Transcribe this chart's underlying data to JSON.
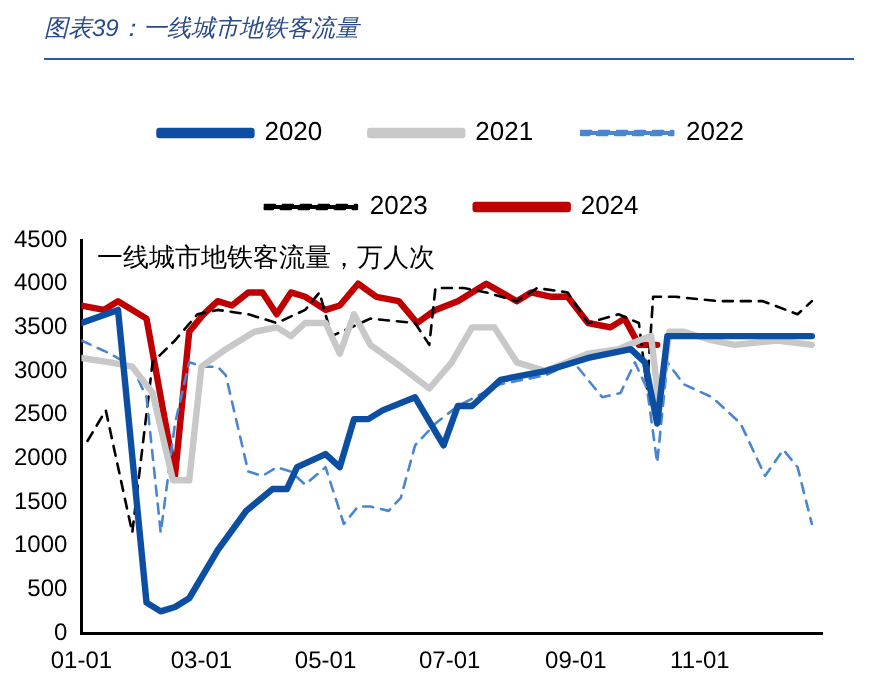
{
  "chart_data": {
    "type": "line",
    "title": "图表39：一线城市地铁客流量",
    "ylabel": "一线城市地铁客流量，万人次",
    "legend": "top",
    "grid": false,
    "marker": "none",
    "xlim": [
      "--01-01",
      "--12-31"
    ],
    "xticks": [
      {
        "value": "--01-01",
        "label": "01-01"
      },
      {
        "value": "--03-01",
        "label": "03-01"
      },
      {
        "value": "--05-01",
        "label": "05-01"
      },
      {
        "value": "--07-01",
        "label": "07-01"
      },
      {
        "value": "--09-01",
        "label": "09-01"
      },
      {
        "value": "--11-01",
        "label": "11-01"
      }
    ],
    "ylim": [
      0,
      4500
    ],
    "yticks": [
      0,
      500,
      1000,
      1500,
      2000,
      2500,
      3000,
      3500,
      4000,
      4500
    ],
    "series": [
      {
        "name": "2020",
        "color": "#0b4ea2",
        "line_style": "solid",
        "x": [
          "--01-01",
          "--01-19",
          "--02-02",
          "--02-09",
          "--02-16",
          "--02-23",
          "--03-09",
          "--03-23",
          "--04-05",
          "--04-12",
          "--04-17",
          "--05-01",
          "--05-08",
          "--05-15",
          "--05-22",
          "--05-29",
          "--06-14",
          "--06-28",
          "--07-05",
          "--07-12",
          "--07-26",
          "--08-17",
          "--09-07",
          "--09-28",
          "--10-05",
          "--10-11",
          "--10-16",
          "--10-27",
          "--11-17",
          "--12-08",
          "--12-26"
        ],
        "values": [
          3550,
          3700,
          350,
          250,
          300,
          400,
          950,
          1400,
          1650,
          1650,
          1900,
          2050,
          1900,
          2450,
          2450,
          2550,
          2700,
          2150,
          2600,
          2600,
          2900,
          3000,
          3150,
          3250,
          3100,
          2400,
          3400,
          3400,
          3400,
          3400,
          3400
        ]
      },
      {
        "name": "2021",
        "color": "#c8c8c8",
        "line_style": "solid",
        "x": [
          "--01-01",
          "--01-15",
          "--01-26",
          "--02-05",
          "--02-15",
          "--02-23",
          "--03-01",
          "--03-13",
          "--03-27",
          "--04-07",
          "--04-14",
          "--04-21",
          "--05-01",
          "--05-08",
          "--05-15",
          "--05-23",
          "--06-07",
          "--06-21",
          "--07-02",
          "--07-12",
          "--07-23",
          "--08-03",
          "--08-17",
          "--09-07",
          "--09-22",
          "--10-02",
          "--10-08",
          "--10-12",
          "--10-17",
          "--10-24",
          "--11-07",
          "--11-18",
          "--12-09",
          "--12-26"
        ],
        "values": [
          3150,
          3100,
          3050,
          2750,
          1750,
          1750,
          3050,
          3250,
          3450,
          3500,
          3400,
          3550,
          3550,
          3200,
          3650,
          3300,
          3050,
          2800,
          3100,
          3500,
          3500,
          3100,
          3000,
          3200,
          3250,
          3350,
          3400,
          2600,
          3450,
          3450,
          3350,
          3300,
          3350,
          3300
        ]
      },
      {
        "name": "2022",
        "color": "#4a86d0",
        "line_style": "dashed",
        "x": [
          "--01-01",
          "--01-15",
          "--01-26",
          "--02-02",
          "--02-09",
          "--02-16",
          "--02-23",
          "--03-02",
          "--03-09",
          "--03-13",
          "--03-24",
          "--03-31",
          "--04-07",
          "--04-14",
          "--04-21",
          "--05-01",
          "--05-10",
          "--05-17",
          "--05-23",
          "--06-01",
          "--06-07",
          "--06-14",
          "--06-24",
          "--07-05",
          "--07-26",
          "--08-17",
          "--08-31",
          "--09-14",
          "--09-23",
          "--09-30",
          "--10-06",
          "--10-11",
          "--10-16",
          "--10-24",
          "--11-07",
          "--11-21",
          "--12-03",
          "--12-12",
          "--12-19",
          "--12-26"
        ],
        "values": [
          3350,
          3200,
          3050,
          2700,
          1150,
          2400,
          3100,
          3050,
          3050,
          2950,
          1850,
          1800,
          1900,
          1850,
          1700,
          1900,
          1250,
          1450,
          1450,
          1400,
          1550,
          2150,
          2400,
          2600,
          2850,
          2950,
          3100,
          2700,
          2750,
          3100,
          2800,
          1950,
          3100,
          2850,
          2700,
          2400,
          1800,
          2100,
          1900,
          1250
        ]
      },
      {
        "name": "2023",
        "color": "#000000",
        "line_style": "dashed",
        "x": [
          "--01-04",
          "--01-13",
          "--01-26",
          "--02-05",
          "--02-16",
          "--02-27",
          "--03-09",
          "--03-24",
          "--04-07",
          "--04-21",
          "--04-28",
          "--05-04",
          "--05-23",
          "--06-14",
          "--06-21",
          "--06-24",
          "--07-08",
          "--07-19",
          "--08-03",
          "--08-13",
          "--08-28",
          "--09-07",
          "--09-22",
          "--10-02",
          "--10-06",
          "--10-09",
          "--10-20",
          "--11-10",
          "--12-02",
          "--12-19",
          "--12-26"
        ],
        "values": [
          2200,
          2550,
          1150,
          3100,
          3350,
          3650,
          3700,
          3650,
          3550,
          3700,
          3900,
          3400,
          3600,
          3550,
          3300,
          3950,
          3950,
          3900,
          3800,
          3950,
          3900,
          3550,
          3650,
          3550,
          2800,
          3850,
          3850,
          3800,
          3800,
          3650,
          3800
        ]
      },
      {
        "name": "2024",
        "color": "#c00000",
        "line_style": "solid",
        "x": [
          "--01-01",
          "--01-12",
          "--01-19",
          "--02-02",
          "--02-16",
          "--02-23",
          "--03-02",
          "--03-09",
          "--03-16",
          "--03-24",
          "--03-31",
          "--04-07",
          "--04-14",
          "--04-21",
          "--05-01",
          "--05-08",
          "--05-17",
          "--05-26",
          "--06-06",
          "--06-15",
          "--06-24",
          "--07-05",
          "--07-19",
          "--08-03",
          "--08-10",
          "--08-20",
          "--08-28",
          "--09-07",
          "--09-18",
          "--09-25",
          "--10-02",
          "--10-11"
        ],
        "values": [
          3750,
          3700,
          3800,
          3600,
          1800,
          3450,
          3650,
          3800,
          3750,
          3900,
          3900,
          3650,
          3900,
          3850,
          3700,
          3750,
          4000,
          3850,
          3800,
          3550,
          3700,
          3800,
          4000,
          3800,
          3900,
          3850,
          3850,
          3550,
          3500,
          3600,
          3300,
          3300
        ]
      }
    ]
  }
}
